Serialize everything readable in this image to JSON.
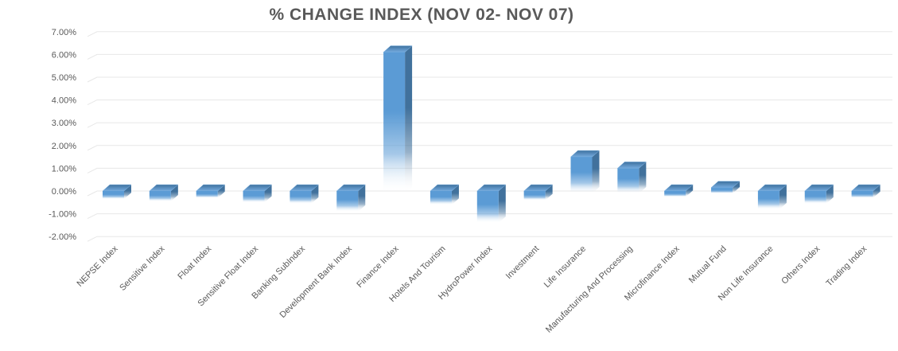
{
  "chart_data": {
    "type": "bar",
    "title": "% CHANGE INDEX (NOV 02- NOV 07)",
    "categories": [
      "NEPSE Index",
      "Sensitive Index",
      "Float Index",
      "Sensitive Float Index",
      "Banking SubIndex",
      "Development Bank Index",
      "Finance Index",
      "Hotels And Tourism",
      "HydroPower Index",
      "Investment",
      "Life Insurance",
      "Manufacturing And Processing",
      "Microfinance Index",
      "Mutual Fund",
      "Non Life Insurance",
      "Others Index",
      "Trading Index"
    ],
    "values": [
      -0.25,
      -0.35,
      -0.2,
      -0.4,
      -0.45,
      -0.8,
      6.1,
      -0.5,
      -1.3,
      -0.3,
      1.5,
      1.0,
      -0.15,
      0.15,
      -0.7,
      -0.45,
      -0.2
    ],
    "unit": "%",
    "xlabel": "",
    "ylabel": "",
    "ylim": [
      -2,
      7
    ],
    "y_tick_step": 1,
    "y_ticks": [
      "7.00%",
      "6.00%",
      "5.00%",
      "4.00%",
      "3.00%",
      "2.00%",
      "1.00%",
      "0.00%",
      "-1.00%",
      "-2.00%"
    ],
    "grid": true,
    "legend_position": "none",
    "bar_style": "3d-beveled-gradient",
    "style": {
      "bar_color": "#5B9BD5",
      "bar_side_color": "#41719C",
      "bar_top_color_back": "#3E719F",
      "bar_top_color_front": "#74AADD",
      "grid_color": "#E7E7E7",
      "axis_text_color": "#595959",
      "title_color": "#595959",
      "background": "#FFFFFF"
    }
  }
}
